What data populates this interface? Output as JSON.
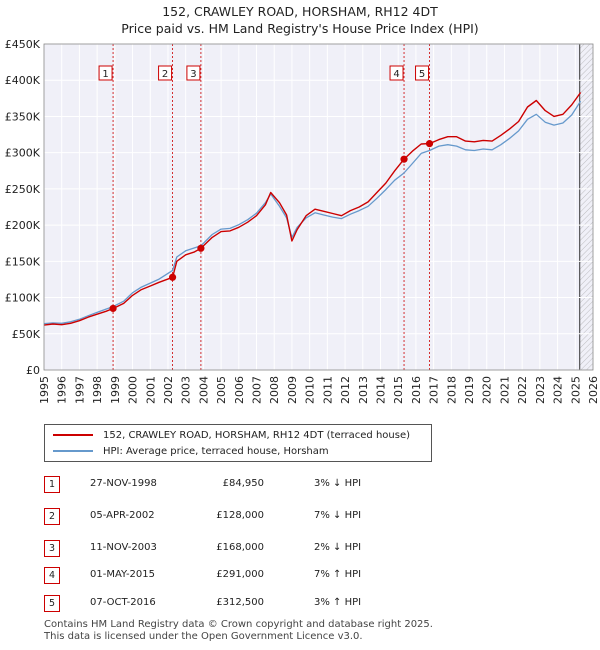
{
  "title": "152, CRAWLEY ROAD, HORSHAM, RH12 4DT",
  "subtitle": "Price paid vs. HM Land Registry's House Price Index (HPI)",
  "legend": {
    "property_label": "152, CRAWLEY ROAD, HORSHAM, RH12 4DT (terraced house)",
    "hpi_label": "HPI: Average price, terraced house, Horsham"
  },
  "sales": [
    {
      "num": "1",
      "date": "27-NOV-1998",
      "price": "£84,950",
      "rel": "3% ↓ HPI"
    },
    {
      "num": "2",
      "date": "05-APR-2002",
      "price": "£128,000",
      "rel": "7% ↓ HPI"
    },
    {
      "num": "3",
      "date": "11-NOV-2003",
      "price": "£168,000",
      "rel": "2% ↓ HPI"
    },
    {
      "num": "4",
      "date": "01-MAY-2015",
      "price": "£291,000",
      "rel": "7% ↑ HPI"
    },
    {
      "num": "5",
      "date": "07-OCT-2016",
      "price": "£312,500",
      "rel": "3% ↑ HPI"
    }
  ],
  "footer": {
    "line1": "Contains HM Land Registry data © Crown copyright and database right 2025.",
    "line2": "This data is licensed under the Open Government Licence v3.0."
  },
  "colors": {
    "property": "#cc0000",
    "hpi": "#6699cc",
    "marker_line": "#cc0000",
    "hatch": "#888888"
  },
  "chart_data": {
    "type": "line",
    "title": "152, CRAWLEY ROAD, HORSHAM, RH12 4DT",
    "subtitle": "Price paid vs. HM Land Registry's House Price Index (HPI)",
    "xlabel": "",
    "ylabel": "",
    "xlim": [
      1995,
      2026
    ],
    "ylim": [
      0,
      450000
    ],
    "x_ticks": [
      1995,
      1996,
      1997,
      1998,
      1999,
      2000,
      2001,
      2002,
      2003,
      2004,
      2005,
      2006,
      2007,
      2008,
      2009,
      2010,
      2011,
      2012,
      2013,
      2014,
      2015,
      2016,
      2017,
      2018,
      2019,
      2020,
      2021,
      2022,
      2023,
      2024,
      2025,
      2026
    ],
    "y_ticks": [
      {
        "value": 0,
        "label": "£0"
      },
      {
        "value": 50000,
        "label": "£50K"
      },
      {
        "value": 100000,
        "label": "£100K"
      },
      {
        "value": 150000,
        "label": "£150K"
      },
      {
        "value": 200000,
        "label": "£200K"
      },
      {
        "value": 250000,
        "label": "£250K"
      },
      {
        "value": 300000,
        "label": "£300K"
      },
      {
        "value": 350000,
        "label": "£350K"
      },
      {
        "value": 400000,
        "label": "£400K"
      },
      {
        "value": 450000,
        "label": "£450K"
      }
    ],
    "grid": true,
    "forecast_start": 2025.25,
    "series": [
      {
        "name": "152, CRAWLEY ROAD, HORSHAM, RH12 4DT (terraced house)",
        "x": [
          1995.0,
          1995.5,
          1996.0,
          1996.5,
          1997.0,
          1997.5,
          1998.0,
          1998.5,
          1998.9,
          1999.5,
          2000.0,
          2000.5,
          2001.0,
          2001.5,
          2002.26,
          2002.5,
          2003.0,
          2003.5,
          2003.86,
          2004.5,
          2005.0,
          2005.5,
          2006.0,
          2006.5,
          2007.0,
          2007.5,
          2007.8,
          2008.3,
          2008.7,
          2009.0,
          2009.3,
          2009.8,
          2010.3,
          2010.8,
          2011.3,
          2011.8,
          2012.3,
          2012.8,
          2013.3,
          2013.8,
          2014.3,
          2014.8,
          2015.33,
          2015.8,
          2016.3,
          2016.77,
          2017.3,
          2017.8,
          2018.3,
          2018.8,
          2019.3,
          2019.8,
          2020.3,
          2020.8,
          2021.3,
          2021.8,
          2022.3,
          2022.8,
          2023.3,
          2023.8,
          2024.3,
          2024.8,
          2025.3
        ],
        "values": [
          62000,
          63500,
          62500,
          64500,
          68000,
          73000,
          77000,
          81000,
          84950,
          92000,
          103000,
          111000,
          116000,
          121000,
          128000,
          150000,
          159000,
          163000,
          168000,
          183000,
          191000,
          192000,
          197000,
          204000,
          213000,
          228000,
          245000,
          231000,
          214000,
          178000,
          194000,
          213000,
          222000,
          219000,
          216000,
          213000,
          220000,
          225000,
          232000,
          245000,
          258000,
          275000,
          291000,
          302000,
          312000,
          312500,
          318000,
          322000,
          322000,
          316000,
          315000,
          317000,
          316000,
          324000,
          333000,
          343000,
          363000,
          372000,
          358000,
          350000,
          353000,
          366000,
          383000
        ]
      },
      {
        "name": "HPI: Average price, terraced house, Horsham",
        "x": [
          1995.0,
          1995.5,
          1996.0,
          1996.5,
          1997.0,
          1997.5,
          1998.0,
          1998.5,
          1998.9,
          1999.5,
          2000.0,
          2000.5,
          2001.0,
          2001.5,
          2002.26,
          2002.5,
          2003.0,
          2003.5,
          2003.86,
          2004.5,
          2005.0,
          2005.5,
          2006.0,
          2006.5,
          2007.0,
          2007.5,
          2007.8,
          2008.3,
          2008.7,
          2009.0,
          2009.3,
          2009.8,
          2010.3,
          2010.8,
          2011.3,
          2011.8,
          2012.3,
          2012.8,
          2013.3,
          2013.8,
          2014.3,
          2014.8,
          2015.33,
          2015.8,
          2016.3,
          2016.77,
          2017.3,
          2017.8,
          2018.3,
          2018.8,
          2019.3,
          2019.8,
          2020.3,
          2020.8,
          2021.3,
          2021.8,
          2022.3,
          2022.8,
          2023.3,
          2023.8,
          2024.3,
          2024.8,
          2025.3
        ],
        "values": [
          64000,
          65000,
          64500,
          66500,
          70000,
          75000,
          79500,
          84000,
          87500,
          95000,
          106500,
          114500,
          120000,
          125500,
          137500,
          156000,
          164500,
          168500,
          171500,
          187000,
          194500,
          195500,
          200500,
          207500,
          216500,
          231000,
          243000,
          226000,
          210000,
          183000,
          197000,
          210000,
          217000,
          214000,
          211000,
          209000,
          215000,
          220000,
          226000,
          237000,
          249000,
          262000,
          272000,
          285000,
          299000,
          303000,
          309000,
          311000,
          309000,
          304000,
          303000,
          305000,
          304000,
          311000,
          320000,
          330000,
          346000,
          353000,
          342000,
          338000,
          341000,
          352000,
          371000
        ]
      }
    ],
    "sales_markers": [
      {
        "label": "1",
        "x": 1998.9,
        "value": 84950
      },
      {
        "label": "2",
        "x": 2002.26,
        "value": 128000
      },
      {
        "label": "3",
        "x": 2003.86,
        "value": 168000
      },
      {
        "label": "4",
        "x": 2015.33,
        "value": 291000
      },
      {
        "label": "5",
        "x": 2016.77,
        "value": 312500
      }
    ]
  }
}
